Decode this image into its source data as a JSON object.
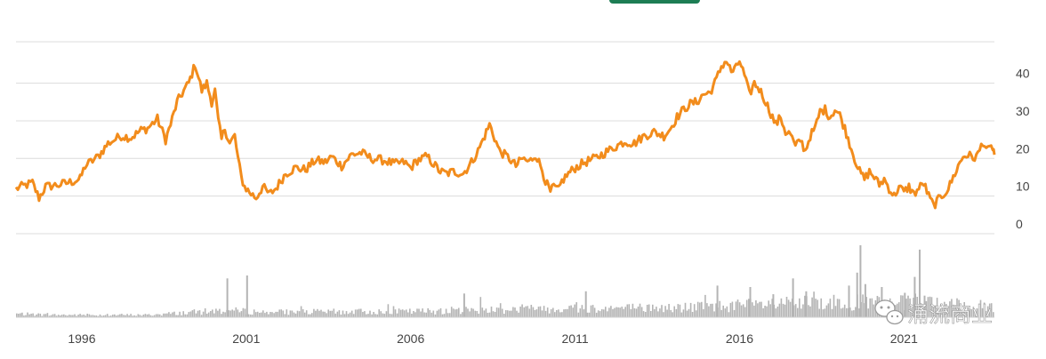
{
  "chart_data": [
    {
      "type": "line",
      "title": "",
      "xlabel": "",
      "ylabel": "",
      "x_ticks": [
        "1996",
        "2001",
        "2006",
        "2011",
        "2016",
        "2021"
      ],
      "y_ticks": [
        "0",
        "10",
        "20",
        "30",
        "40"
      ],
      "ylim": [
        0,
        51
      ],
      "xlim": [
        1994.0,
        2023.75
      ],
      "grid": true,
      "line_color": "#f28c1c",
      "series": [
        {
          "values": [
            [
              1994.0,
              12.0
            ],
            [
              1994.5,
              13.5
            ],
            [
              1994.7,
              9.5
            ],
            [
              1994.9,
              12.5
            ],
            [
              1995.3,
              13.0
            ],
            [
              1995.7,
              13.8
            ],
            [
              1995.95,
              14.5
            ],
            [
              1996.1,
              18.0
            ],
            [
              1996.5,
              20.5
            ],
            [
              1996.8,
              24.0
            ],
            [
              1997.2,
              26.0
            ],
            [
              1997.5,
              25.5
            ],
            [
              1997.8,
              27.5
            ],
            [
              1998.0,
              28.0
            ],
            [
              1998.3,
              30.5
            ],
            [
              1998.55,
              25.0
            ],
            [
              1998.7,
              29.0
            ],
            [
              1998.9,
              35.0
            ],
            [
              1999.1,
              38.0
            ],
            [
              1999.25,
              40.0
            ],
            [
              1999.45,
              45.0
            ],
            [
              1999.65,
              38.0
            ],
            [
              1999.8,
              40.0
            ],
            [
              1999.95,
              35.0
            ],
            [
              2000.05,
              38.0
            ],
            [
              2000.15,
              30.0
            ],
            [
              2000.25,
              25.0
            ],
            [
              2000.35,
              28.0
            ],
            [
              2000.5,
              24.0
            ],
            [
              2000.65,
              26.0
            ],
            [
              2000.75,
              20.0
            ],
            [
              2000.85,
              15.0
            ],
            [
              2000.95,
              12.5
            ],
            [
              2001.1,
              11.0
            ],
            [
              2001.3,
              9.5
            ],
            [
              2001.5,
              12.5
            ],
            [
              2001.7,
              10.5
            ],
            [
              2001.9,
              12.0
            ],
            [
              2002.2,
              16.0
            ],
            [
              2002.5,
              17.5
            ],
            [
              2002.8,
              17.0
            ],
            [
              2003.1,
              19.5
            ],
            [
              2003.4,
              19.0
            ],
            [
              2003.6,
              20.5
            ],
            [
              2003.9,
              18.0
            ],
            [
              2004.2,
              21.0
            ],
            [
              2004.5,
              21.5
            ],
            [
              2004.8,
              20.0
            ],
            [
              2005.2,
              19.5
            ],
            [
              2005.5,
              18.5
            ],
            [
              2005.8,
              19.0
            ],
            [
              2006.0,
              17.5
            ],
            [
              2006.2,
              19.5
            ],
            [
              2006.5,
              20.5
            ],
            [
              2006.7,
              18.5
            ],
            [
              2006.9,
              16.5
            ],
            [
              2007.1,
              16.0
            ],
            [
              2007.3,
              16.5
            ],
            [
              2007.6,
              16.0
            ],
            [
              2007.85,
              19.0
            ],
            [
              2008.05,
              22.0
            ],
            [
              2008.25,
              26.0
            ],
            [
              2008.4,
              29.0
            ],
            [
              2008.55,
              25.5
            ],
            [
              2008.7,
              22.0
            ],
            [
              2009.0,
              20.0
            ],
            [
              2009.2,
              18.0
            ],
            [
              2009.4,
              20.0
            ],
            [
              2009.6,
              19.0
            ],
            [
              2009.8,
              21.0
            ],
            [
              2010.0,
              17.0
            ],
            [
              2010.1,
              14.0
            ],
            [
              2010.25,
              11.0
            ],
            [
              2010.35,
              12.5
            ],
            [
              2010.5,
              11.5
            ],
            [
              2010.6,
              14.0
            ],
            [
              2010.8,
              16.0
            ],
            [
              2011.0,
              17.5
            ],
            [
              2011.3,
              19.0
            ],
            [
              2011.6,
              20.0
            ],
            [
              2011.9,
              21.5
            ],
            [
              2012.2,
              23.0
            ],
            [
              2012.5,
              24.5
            ],
            [
              2012.8,
              24.0
            ],
            [
              2013.1,
              26.0
            ],
            [
              2013.4,
              27.0
            ],
            [
              2013.7,
              26.0
            ],
            [
              2013.9,
              28.0
            ],
            [
              2014.1,
              31.0
            ],
            [
              2014.3,
              33.0
            ],
            [
              2014.5,
              34.5
            ],
            [
              2014.7,
              35.0
            ],
            [
              2014.9,
              37.0
            ],
            [
              2015.1,
              37.5
            ],
            [
              2015.3,
              41.0
            ],
            [
              2015.45,
              44.5
            ],
            [
              2015.6,
              46.0
            ],
            [
              2015.75,
              43.0
            ],
            [
              2015.9,
              44.0
            ],
            [
              2016.0,
              46.0
            ],
            [
              2016.15,
              42.0
            ],
            [
              2016.3,
              37.0
            ],
            [
              2016.45,
              40.0
            ],
            [
              2016.6,
              38.5
            ],
            [
              2016.8,
              35.0
            ],
            [
              2016.95,
              32.0
            ],
            [
              2017.1,
              29.0
            ],
            [
              2017.25,
              31.0
            ],
            [
              2017.4,
              27.0
            ],
            [
              2017.55,
              26.5
            ],
            [
              2017.7,
              23.0
            ],
            [
              2017.85,
              25.0
            ],
            [
              2018.0,
              22.0
            ],
            [
              2018.15,
              26.0
            ],
            [
              2018.3,
              28.0
            ],
            [
              2018.45,
              32.5
            ],
            [
              2018.6,
              33.0
            ],
            [
              2018.75,
              31.0
            ],
            [
              2018.9,
              33.0
            ],
            [
              2019.05,
              31.5
            ],
            [
              2019.2,
              28.0
            ],
            [
              2019.35,
              24.0
            ],
            [
              2019.5,
              20.0
            ],
            [
              2019.65,
              16.5
            ],
            [
              2019.8,
              14.5
            ],
            [
              2019.95,
              16.5
            ],
            [
              2020.1,
              15.0
            ],
            [
              2020.25,
              13.0
            ],
            [
              2020.4,
              14.5
            ],
            [
              2020.55,
              12.0
            ],
            [
              2020.7,
              10.0
            ],
            [
              2020.85,
              12.5
            ],
            [
              2021.0,
              11.0
            ],
            [
              2021.15,
              12.5
            ],
            [
              2021.3,
              10.5
            ],
            [
              2021.45,
              12.0
            ],
            [
              2021.6,
              13.5
            ],
            [
              2021.75,
              10.0
            ],
            [
              2021.9,
              7.5
            ],
            [
              2022.05,
              9.0
            ],
            [
              2022.2,
              10.5
            ],
            [
              2022.35,
              12.0
            ],
            [
              2022.5,
              15.0
            ],
            [
              2022.65,
              18.0
            ],
            [
              2022.8,
              20.5
            ],
            [
              2022.95,
              21.0
            ],
            [
              2023.1,
              20.0
            ],
            [
              2023.25,
              21.0
            ],
            [
              2023.4,
              24.5
            ],
            [
              2023.55,
              22.0
            ],
            [
              2023.7,
              23.0
            ],
            [
              2023.75,
              21.0
            ]
          ]
        }
      ]
    },
    {
      "type": "bar",
      "title": "",
      "bar_color": "#b4b4b4",
      "ylim": [
        0,
        100
      ],
      "seed": 7,
      "spikes": [
        [
          2000.4,
          54
        ],
        [
          2001.0,
          58
        ],
        [
          2007.6,
          33
        ],
        [
          2011.3,
          36
        ],
        [
          2015.3,
          44
        ],
        [
          2016.3,
          42
        ],
        [
          2017.0,
          32
        ],
        [
          2017.6,
          54
        ],
        [
          2018.0,
          36
        ],
        [
          2019.3,
          44
        ],
        [
          2019.55,
          62
        ],
        [
          2019.65,
          100
        ],
        [
          2019.8,
          46
        ],
        [
          2020.3,
          42
        ],
        [
          2021.0,
          34
        ],
        [
          2021.3,
          56
        ],
        [
          2021.45,
          94
        ],
        [
          2021.6,
          30
        ]
      ],
      "level_knots": [
        [
          1994.0,
          6
        ],
        [
          1995.0,
          4
        ],
        [
          1998.0,
          4
        ],
        [
          2000.3,
          12
        ],
        [
          2001.5,
          9
        ],
        [
          2006.0,
          10
        ],
        [
          2008.0,
          13
        ],
        [
          2011.0,
          16
        ],
        [
          2014.0,
          16
        ],
        [
          2015.5,
          20
        ],
        [
          2017.0,
          22
        ],
        [
          2019.0,
          26
        ],
        [
          2021.5,
          24
        ],
        [
          2023.75,
          18
        ]
      ]
    }
  ],
  "watermark": {
    "text": "涌流商业",
    "icon": "wechat-bubble-icon"
  },
  "header": {
    "green_button_color": "#1d7d54"
  }
}
